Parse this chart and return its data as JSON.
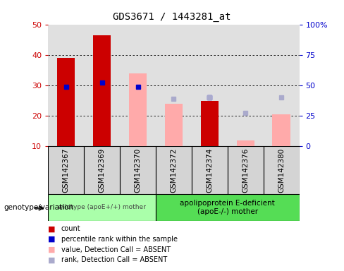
{
  "title": "GDS3671 / 1443281_at",
  "samples": [
    "GSM142367",
    "GSM142369",
    "GSM142370",
    "GSM142372",
    "GSM142374",
    "GSM142376",
    "GSM142380"
  ],
  "count_values": [
    39,
    46.5,
    null,
    null,
    25,
    null,
    null
  ],
  "count_absent_values": [
    null,
    null,
    34,
    24,
    null,
    12,
    20.5
  ],
  "percentile_values": [
    29.5,
    31,
    29.5,
    null,
    26,
    null,
    null
  ],
  "percentile_absent_values": [
    null,
    null,
    null,
    25.5,
    26,
    21,
    26
  ],
  "ylim_left": [
    10,
    50
  ],
  "ylim_right": [
    0,
    100
  ],
  "yticks_left": [
    10,
    20,
    30,
    40,
    50
  ],
  "yticks_right": [
    0,
    25,
    50,
    75,
    100
  ],
  "ytick_labels_right": [
    "0",
    "25",
    "50",
    "75",
    "100%"
  ],
  "color_count": "#cc0000",
  "color_count_absent": "#ffaaaa",
  "color_percentile": "#0000cc",
  "color_percentile_absent": "#aaaacc",
  "group1_count": 3,
  "group2_count": 4,
  "group1_label": "wildtype (apoE+/+) mother",
  "group2_label": "apolipoprotein E-deficient\n(apoE-/-) mother",
  "genotype_label": "genotype/variation",
  "group1_color": "#aaffaa",
  "group2_color": "#55dd55",
  "legend_items": [
    {
      "label": "count",
      "color": "#cc0000"
    },
    {
      "label": "percentile rank within the sample",
      "color": "#0000cc"
    },
    {
      "label": "value, Detection Call = ABSENT",
      "color": "#ffaaaa"
    },
    {
      "label": "rank, Detection Call = ABSENT",
      "color": "#aaaacc"
    }
  ]
}
